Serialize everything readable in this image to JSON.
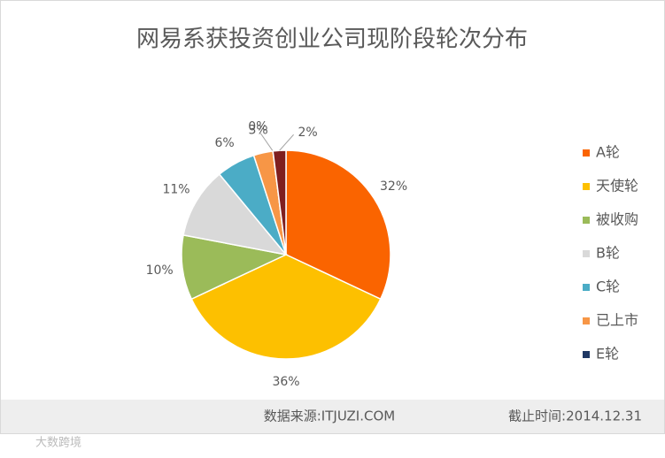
{
  "chart_data": {
    "type": "pie",
    "title": "网易系获投资创业公司现阶段轮次分布",
    "categories": [
      "A轮",
      "天使轮",
      "被收购",
      "B轮",
      "C轮",
      "已上市",
      "E轮",
      null
    ],
    "values": [
      32,
      36,
      10,
      11,
      6,
      3,
      0,
      2
    ],
    "value_labels": [
      "32%",
      "36%",
      "10%",
      "11%",
      "6%",
      "3%",
      "0%",
      "2%"
    ],
    "colors": [
      "#fa6400",
      "#fdc000",
      "#9bbb59",
      "#d9d9d9",
      "#4bacc6",
      "#f79646",
      "#1f3864",
      "#7f1f1f"
    ],
    "legend": "right",
    "source": "数据来源:ITJUZI.COM",
    "date": "截止时间:2014.12.31"
  },
  "watermark": "大数跨境"
}
